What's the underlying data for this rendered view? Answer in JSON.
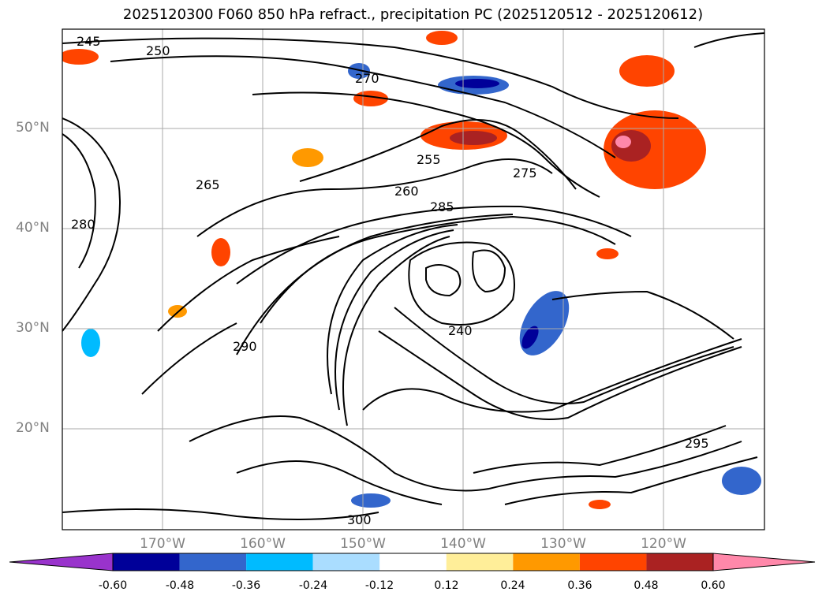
{
  "title": "2025120300 F060 850 hPa refract., precipitation PC (2025120512 - 2025120612)",
  "latitude_labels": [
    "50°N",
    "40°N",
    "30°N",
    "20°N"
  ],
  "longitude_labels": [
    "170°W",
    "160°W",
    "150°W",
    "140°W",
    "130°W",
    "120°W"
  ],
  "contour_labels": [
    "245",
    "250",
    "255",
    "260",
    "265",
    "270",
    "275",
    "280",
    "285",
    "290",
    "295",
    "300",
    "240"
  ],
  "colorbar": {
    "ticks": [
      "-0.60",
      "-0.48",
      "-0.36",
      "-0.24",
      "-0.12",
      "0.12",
      "0.24",
      "0.36",
      "0.48",
      "0.60"
    ],
    "colors": [
      "#9933cc",
      "#000099",
      "#3366cc",
      "#00bbff",
      "#aaddff",
      "#ffffff",
      "#ffee99",
      "#ff9900",
      "#ff4400",
      "#aa2222",
      "#ff88aa"
    ]
  }
}
